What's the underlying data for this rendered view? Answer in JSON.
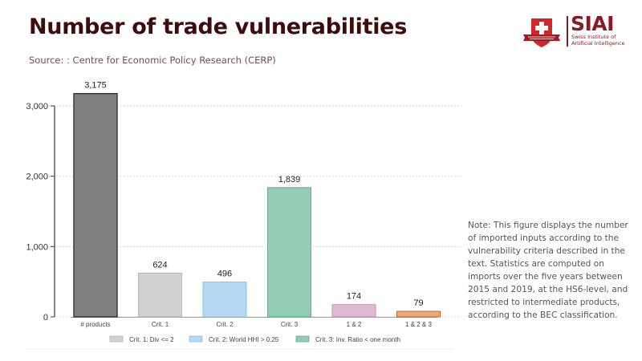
{
  "header": {
    "title": "Number of trade vulnerabilities",
    "source": "Source: : Centre for Economic Policy Research (CERP)"
  },
  "logo": {
    "name": "SIAI",
    "subtitle_line1": "Swiss Institute of",
    "subtitle_line2": "Artificial Intelligence",
    "brand_color": "#8b1a22"
  },
  "note": "Note: This figure displays the number of imported inputs according to the vulnerability criteria described in the text. Statistics are computed on imports over the five years between 2015 and 2019, at the HS6-level, and restricted to intermediate products, according to the BEC classification.",
  "chart_data": {
    "type": "bar",
    "title": "Number of trade vulnerabilities",
    "xlabel": "",
    "ylabel": "",
    "categories": [
      "# products",
      "Crit. 1",
      "Crit. 2",
      "Crit. 3",
      "1 & 2",
      "1 & 2 & 3"
    ],
    "values": [
      3175,
      624,
      496,
      1839,
      174,
      79
    ],
    "value_labels": [
      "3,175",
      "624",
      "496",
      "1,839",
      "174",
      "79"
    ],
    "colors": [
      "#7f7f7f",
      "#d0d0d0",
      "#b3d8f1",
      "#92cdb6",
      "#e0bad4",
      "#e8a97c"
    ],
    "border_colors": [
      "#333333",
      "#b8b8b8",
      "#8cc2e6",
      "#5fae8e",
      "#c98fb6",
      "#c8683a"
    ],
    "ylim": [
      0,
      3300
    ],
    "yticks": [
      0,
      1000,
      2000,
      3000
    ],
    "ytick_labels": [
      "0",
      "1,000",
      "2,000",
      "3,000"
    ],
    "grid": true,
    "legend": {
      "placement": "bottom",
      "entries": [
        {
          "label": "Crit. 1: Div <= 2",
          "color": "#d0d0d0",
          "border": "#b8b8b8"
        },
        {
          "label": "Crit. 2: World HHI > 0.25",
          "color": "#b3d8f1",
          "border": "#8cc2e6"
        },
        {
          "label": "Crit. 3: Inv. Ratio < one month",
          "color": "#92cdb6",
          "border": "#5fae8e"
        }
      ]
    }
  }
}
